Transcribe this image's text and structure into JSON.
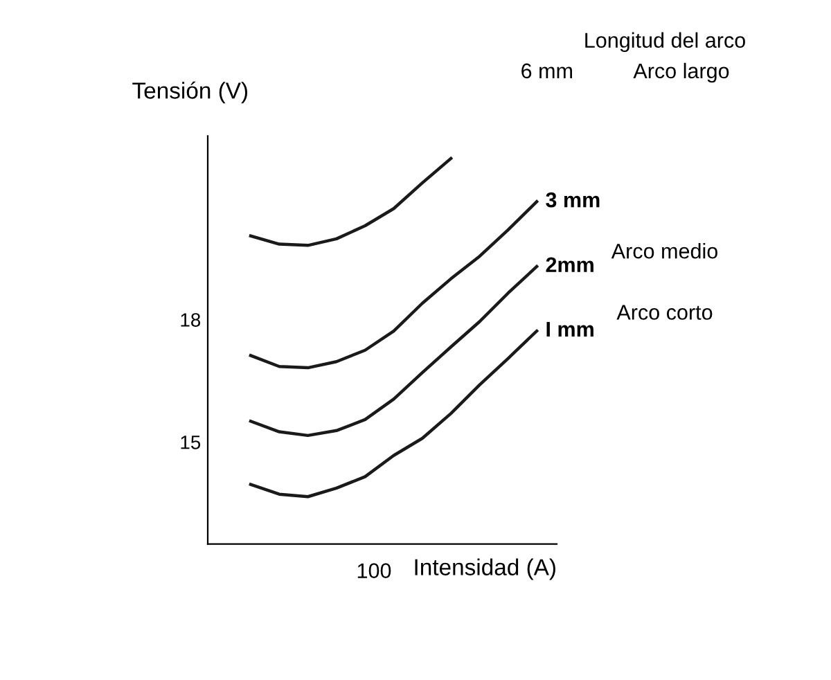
{
  "chart_data": {
    "type": "line",
    "xlabel": "Intensidad (A)",
    "ylabel": "Tensión (V)",
    "categories": [
      null,
      null,
      null,
      null,
      null,
      null,
      null,
      null,
      null,
      null,
      null
    ],
    "series": [
      {
        "name": "6 mm",
        "color": "#1a1a1a",
        "values": [
          20.05,
          19.85,
          19.82,
          19.98,
          20.3,
          20.72,
          21.35,
          21.95,
          null,
          null,
          null
        ]
      },
      {
        "name": "3 mm",
        "color": "#1a1a1a",
        "values": [
          17.12,
          16.85,
          16.82,
          16.97,
          17.25,
          17.72,
          18.4,
          19.0,
          19.55,
          20.2,
          20.89
        ]
      },
      {
        "name": "2mm",
        "color": "#1a1a1a",
        "values": [
          15.51,
          15.25,
          15.16,
          15.28,
          15.55,
          16.05,
          16.7,
          17.33,
          17.95,
          18.65,
          19.3
        ]
      },
      {
        "name": "I mm",
        "color": "#1a1a1a",
        "values": [
          13.96,
          13.72,
          13.66,
          13.87,
          14.15,
          14.67,
          15.09,
          15.7,
          16.4,
          17.05,
          17.72
        ]
      }
    ],
    "ylim": [
      12.5,
      22.5
    ],
    "yticks": [
      15,
      18
    ],
    "grid": false,
    "legend": false,
    "marker": "none",
    "line_style": "solid",
    "annotations": [
      "Longitud del arco",
      "Arco largo",
      "Arco medio",
      "Arco corto",
      "100"
    ]
  }
}
